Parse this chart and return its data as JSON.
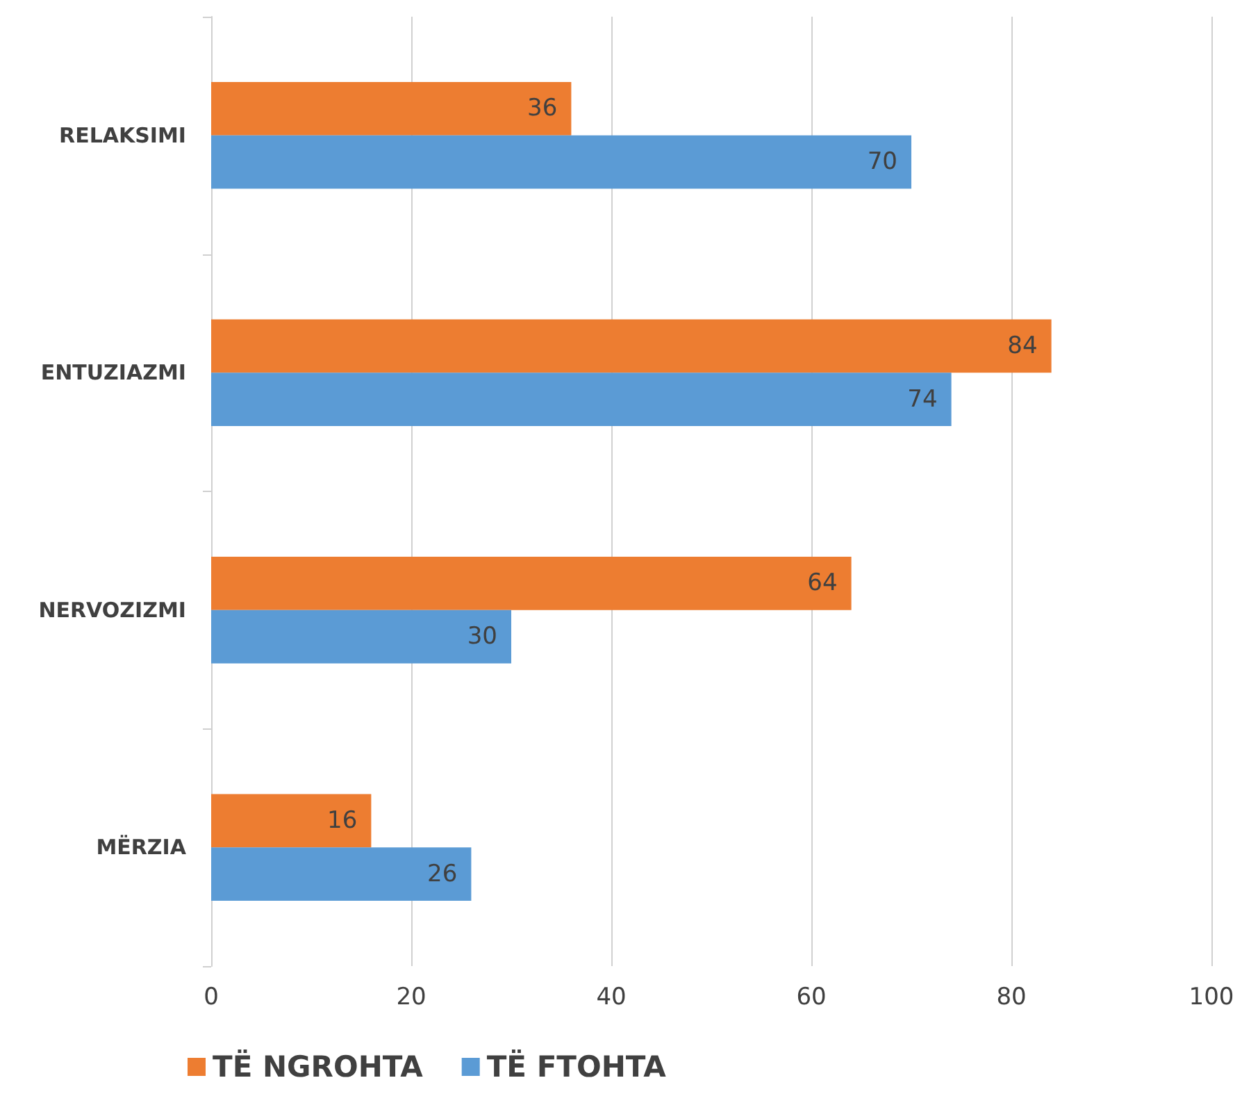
{
  "chart_data": {
    "type": "bar",
    "orientation": "horizontal",
    "categories": [
      "RELAKSIMI",
      "ENTUZIAZMI",
      "NERVOZIZMI",
      "MËRZIA"
    ],
    "series": [
      {
        "name": "TË NGROHTA",
        "color": "#ed7d31",
        "values": [
          36,
          84,
          64,
          16
        ]
      },
      {
        "name": "TË FTOHTA",
        "color": "#5b9bd5",
        "values": [
          70,
          74,
          30,
          26
        ]
      }
    ],
    "xlim": [
      0,
      100
    ],
    "xticks": [
      0,
      20,
      40,
      60,
      80,
      100
    ],
    "grid": "x",
    "legend": "bottom left",
    "data_labels": true
  }
}
